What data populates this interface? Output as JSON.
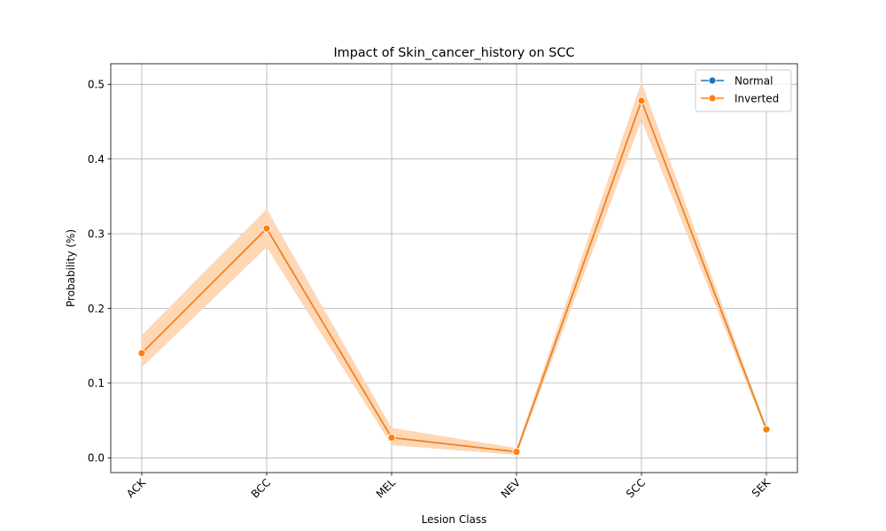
{
  "chart_data": {
    "type": "line",
    "title": "Impact of Skin_cancer_history on SCC",
    "xlabel": "Lesion Class",
    "ylabel": "Probability (%)",
    "categories": [
      "ACK",
      "BCC",
      "MEL",
      "NEV",
      "SCC",
      "SEK"
    ],
    "ylim": [
      -0.02,
      0.525
    ],
    "yticks": [
      0.0,
      0.1,
      0.2,
      0.3,
      0.4,
      0.5
    ],
    "ytick_labels": [
      "0.0",
      "0.1",
      "0.2",
      "0.3",
      "0.4",
      "0.5"
    ],
    "grid": true,
    "legend_position": "top-right",
    "series": [
      {
        "name": "Normal",
        "color": "#1f77b4",
        "values": [
          0.14,
          0.307,
          0.027,
          0.008,
          0.478,
          0.038
        ],
        "ci_low": [
          0.121,
          0.282,
          0.017,
          0.004,
          0.452,
          0.034
        ],
        "ci_high": [
          0.164,
          0.333,
          0.04,
          0.013,
          0.503,
          0.041
        ]
      },
      {
        "name": "Inverted",
        "color": "#ff7f0e",
        "band_color": "#ffd7b5",
        "values": [
          0.14,
          0.307,
          0.027,
          0.008,
          0.478,
          0.038
        ],
        "ci_low": [
          0.121,
          0.282,
          0.017,
          0.004,
          0.452,
          0.034
        ],
        "ci_high": [
          0.164,
          0.333,
          0.04,
          0.013,
          0.503,
          0.041
        ]
      }
    ]
  }
}
